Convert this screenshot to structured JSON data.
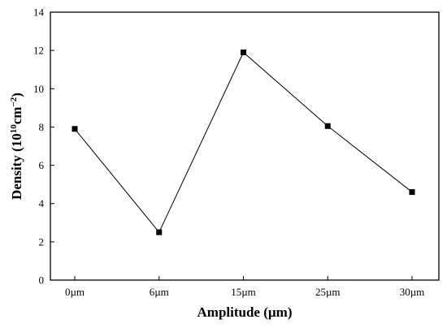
{
  "chart_data": {
    "type": "line",
    "title": "",
    "categories": [
      "0µm",
      "6µm",
      "15µm",
      "25µm",
      "30µm"
    ],
    "series": [
      {
        "values": [
          7.9,
          2.5,
          11.9,
          8.05,
          4.6
        ],
        "color": "#000000",
        "marker": "square"
      }
    ],
    "xlabel": "Amplitude (µm)",
    "ylabel": {
      "prefix": "Density (10",
      "sup1": "10",
      "mid": "cm",
      "sup2": "−2",
      "suffix": ")"
    },
    "ylim": [
      0,
      14
    ],
    "yticks": [
      0,
      2,
      4,
      6,
      8,
      10,
      12,
      14
    ],
    "grid": false,
    "legend": "none"
  }
}
